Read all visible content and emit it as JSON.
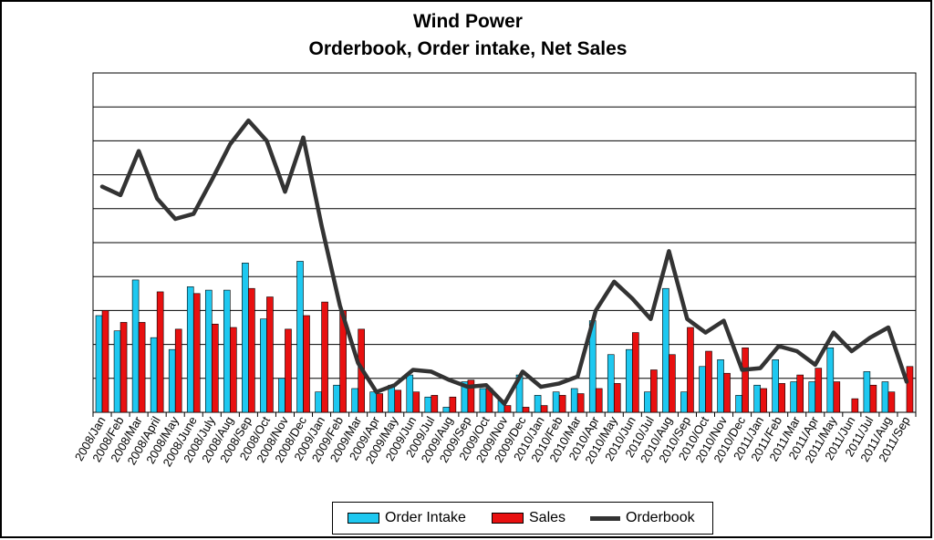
{
  "chart_data": {
    "type": "bar",
    "title": "Wind Power",
    "subtitle": "Orderbook, Order intake, Net Sales",
    "xlabel": "",
    "ylabel": "",
    "ylim": [
      0,
      10
    ],
    "grid": true,
    "legend_position": "bottom",
    "categories": [
      "2008/Jan",
      "2008/Feb",
      "2008/Mar",
      "2008/April",
      "2008/May",
      "2008/June",
      "2008/July",
      "2008/Aug",
      "2008/Sep",
      "2008/Oct",
      "2008/Nov",
      "2008/Dec",
      "2009/Jan",
      "2009/Feb",
      "2009/Mar",
      "2009/Apr",
      "2009/May",
      "2009/Jun",
      "2009/Jul",
      "2009/Aug",
      "2009/Sep",
      "2009/Oct",
      "2009/Nov",
      "2009/Dec",
      "2010/Jan",
      "2010/Feb",
      "2010/Mar",
      "2010/Apr",
      "2010/May",
      "2010/Jun",
      "2010/Jul",
      "2010/Aug",
      "2010/Sep",
      "2010/Oct",
      "2010/Nov",
      "2010/Dec",
      "2011/Jan",
      "2011/Feb",
      "2011/Mar",
      "2011/Apr",
      "2011/May",
      "2011/Jun",
      "2011/Jul",
      "2011/Aug",
      "2011/Sep"
    ],
    "series": [
      {
        "name": "Order Intake",
        "kind": "bar",
        "color": "#1ec8f0",
        "values": [
          2.85,
          2.4,
          3.9,
          2.2,
          1.85,
          3.7,
          3.6,
          3.6,
          4.4,
          2.75,
          1.0,
          4.45,
          0.6,
          0.8,
          0.7,
          0.6,
          0.8,
          1.1,
          0.45,
          0.15,
          0.9,
          0.7,
          0.35,
          1.1,
          0.5,
          0.6,
          0.7,
          2.7,
          1.7,
          1.85,
          0.6,
          3.65,
          0.6,
          1.35,
          1.55,
          0.5,
          0.8,
          1.55,
          0.9,
          0.9,
          1.9,
          0.0,
          1.2,
          0.9,
          0.0
        ]
      },
      {
        "name": "Sales",
        "kind": "bar",
        "color": "#e81010",
        "values": [
          3.0,
          2.65,
          2.65,
          3.55,
          2.45,
          3.5,
          2.6,
          2.5,
          3.65,
          3.4,
          2.45,
          2.85,
          3.25,
          3.0,
          2.45,
          0.55,
          0.65,
          0.6,
          0.5,
          0.45,
          0.95,
          0.7,
          0.2,
          0.15,
          0.2,
          0.5,
          0.55,
          0.7,
          0.85,
          2.35,
          1.25,
          1.7,
          2.5,
          1.8,
          1.15,
          1.9,
          0.7,
          0.85,
          1.1,
          1.3,
          0.9,
          0.4,
          0.8,
          0.6,
          1.35
        ]
      },
      {
        "name": "Orderbook",
        "kind": "line",
        "color": "#333333",
        "values": [
          6.65,
          6.4,
          7.7,
          6.3,
          5.7,
          5.85,
          6.85,
          7.9,
          8.6,
          8.0,
          6.5,
          8.1,
          5.5,
          3.15,
          1.45,
          0.6,
          0.8,
          1.25,
          1.2,
          0.95,
          0.75,
          0.8,
          0.25,
          1.2,
          0.75,
          0.85,
          1.05,
          3.0,
          3.85,
          3.35,
          2.75,
          4.75,
          2.75,
          2.35,
          2.7,
          1.25,
          1.3,
          1.95,
          1.8,
          1.4,
          2.35,
          1.8,
          2.2,
          2.5,
          0.9
        ]
      }
    ]
  },
  "legend": {
    "intake_label": "Order Intake",
    "sales_label": "Sales",
    "orderbook_label": "Orderbook"
  }
}
